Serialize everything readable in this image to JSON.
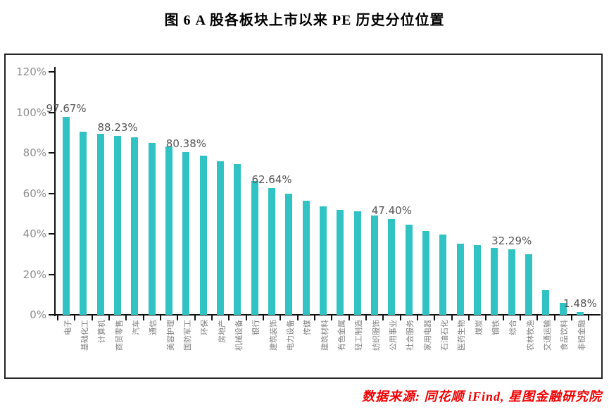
{
  "figure": {
    "title": "图 6 A 股各板块上市以来 PE 历史分位位置",
    "source": "数据来源: 同花顺 iFind, 星图金融研究院"
  },
  "chart_data": {
    "type": "bar",
    "title": "图 6 A 股各板块上市以来 PE 历史分位位置",
    "xlabel": "",
    "ylabel": "",
    "ylim": [
      0,
      120
    ],
    "ytick_labels": [
      "0%",
      "20%",
      "40%",
      "60%",
      "80%",
      "100%",
      "120%"
    ],
    "grid": false,
    "legend": null,
    "bar_color": "#31c3c4",
    "value_label_color": "#555555",
    "axis_label_color": "#8d8d8d",
    "categories": [
      "电子",
      "基础化工",
      "计算机",
      "商贸零售",
      "汽车",
      "通信",
      "美容护理",
      "国防军工",
      "环保",
      "房地产",
      "机械设备",
      "银行",
      "建筑装饰",
      "电力设备",
      "传媒",
      "建筑材料",
      "有色金属",
      "轻工制造",
      "纺织服饰",
      "公用事业",
      "社会服务",
      "家用电器",
      "石油石化",
      "医药生物",
      "煤炭",
      "钢铁",
      "综合",
      "农林牧渔",
      "交通运输",
      "食品饮料",
      "非银金融"
    ],
    "values": [
      97.67,
      90.5,
      89.5,
      88.23,
      87.5,
      85.0,
      83.0,
      80.38,
      78.5,
      76.0,
      74.5,
      66.0,
      62.64,
      60.0,
      56.5,
      53.5,
      52.0,
      51.0,
      49.0,
      47.4,
      44.5,
      41.5,
      39.5,
      35.0,
      34.5,
      33.0,
      32.29,
      30.0,
      12.2,
      5.8,
      1.48
    ],
    "value_labels": {
      "0": "97.67%",
      "3": "88.23%",
      "7": "80.38%",
      "12": "62.64%",
      "19": "47.40%",
      "26": "32.29%",
      "30": "1.48%"
    },
    "source": "数据来源: 同花顺 iFind, 星图金融研究院"
  }
}
